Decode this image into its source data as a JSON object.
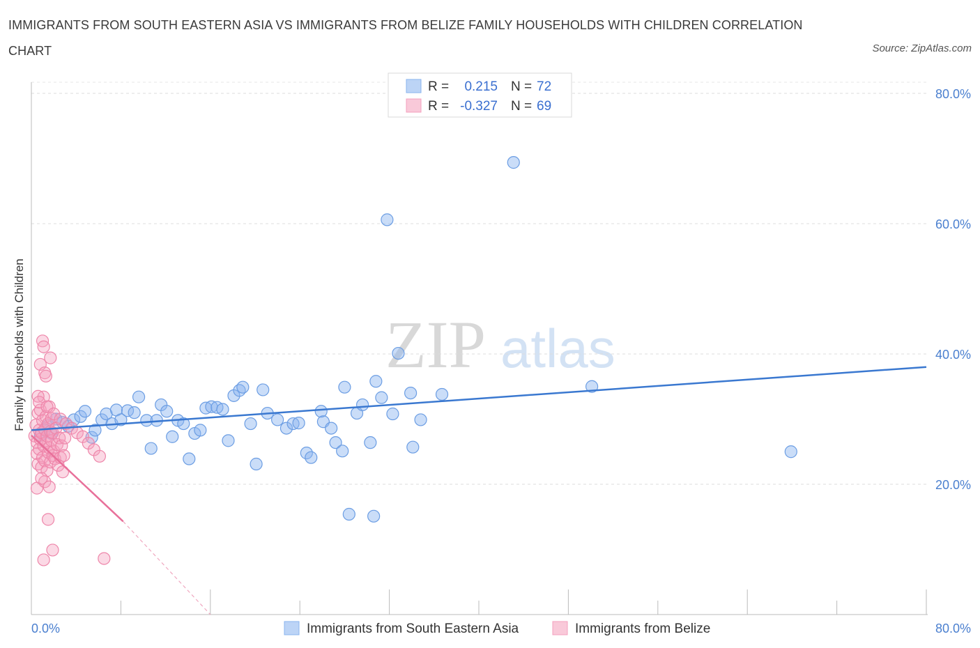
{
  "title": "IMMIGRANTS FROM SOUTH EASTERN ASIA VS IMMIGRANTS FROM BELIZE FAMILY HOUSEHOLDS WITH CHILDREN CORRELATION CHART",
  "source": "Source: ZipAtlas.com",
  "watermark": {
    "zip": "ZIP",
    "atlas": "atlas"
  },
  "legend": {
    "r_label": "R =",
    "n_label": "N =",
    "series": [
      {
        "r": "0.215",
        "n": "72"
      },
      {
        "r": "-0.327",
        "n": "69"
      }
    ]
  },
  "chart_data": {
    "type": "scatter",
    "xlabel": "",
    "ylabel": "Family Households with Children",
    "xlim": [
      0,
      80
    ],
    "ylim": [
      0,
      80
    ],
    "x_tick_labels": [
      "0.0%",
      "80.0%"
    ],
    "y_tick_labels": [
      "80.0%",
      "60.0%",
      "40.0%",
      "20.0%"
    ],
    "y_tick_values": [
      80,
      60,
      40,
      20
    ],
    "colors": {
      "blue": "#8ab4ef",
      "blue_line": "#3a78d0",
      "pink": "#f4a0be",
      "pink_line": "#e8709a"
    },
    "series": [
      {
        "name": "Immigrants from South Eastern Asia",
        "color": "blue",
        "trend": {
          "x0": 0,
          "y0": 28.3,
          "x1": 80,
          "y1": 38.0
        },
        "points": [
          [
            0.8,
            27.5
          ],
          [
            1.2,
            28.3
          ],
          [
            1.5,
            29.0
          ],
          [
            1.8,
            27.8
          ],
          [
            2.2,
            30.0
          ],
          [
            2.8,
            29.5
          ],
          [
            3.3,
            28.9
          ],
          [
            3.8,
            29.9
          ],
          [
            4.4,
            30.4
          ],
          [
            4.8,
            31.2
          ],
          [
            5.4,
            27.2
          ],
          [
            5.7,
            28.3
          ],
          [
            6.3,
            29.9
          ],
          [
            6.7,
            30.8
          ],
          [
            7.2,
            29.3
          ],
          [
            7.6,
            31.4
          ],
          [
            8.0,
            29.9
          ],
          [
            8.6,
            31.3
          ],
          [
            9.2,
            31.0
          ],
          [
            9.6,
            33.4
          ],
          [
            10.3,
            29.8
          ],
          [
            10.7,
            25.5
          ],
          [
            11.2,
            29.8
          ],
          [
            11.6,
            32.2
          ],
          [
            12.1,
            31.2
          ],
          [
            12.6,
            27.3
          ],
          [
            13.1,
            29.8
          ],
          [
            13.6,
            29.3
          ],
          [
            14.1,
            23.9
          ],
          [
            14.6,
            27.8
          ],
          [
            15.1,
            28.3
          ],
          [
            15.6,
            31.7
          ],
          [
            16.1,
            31.9
          ],
          [
            16.6,
            31.8
          ],
          [
            17.1,
            31.5
          ],
          [
            17.6,
            26.7
          ],
          [
            18.1,
            33.6
          ],
          [
            18.6,
            34.4
          ],
          [
            18.9,
            34.9
          ],
          [
            19.6,
            29.3
          ],
          [
            20.1,
            23.1
          ],
          [
            20.7,
            34.5
          ],
          [
            21.1,
            30.9
          ],
          [
            22.0,
            29.9
          ],
          [
            22.8,
            28.6
          ],
          [
            23.4,
            29.3
          ],
          [
            23.9,
            29.4
          ],
          [
            24.6,
            24.8
          ],
          [
            25.0,
            24.1
          ],
          [
            25.9,
            31.2
          ],
          [
            26.1,
            29.6
          ],
          [
            26.8,
            28.6
          ],
          [
            27.2,
            26.4
          ],
          [
            27.8,
            25.1
          ],
          [
            28.0,
            34.9
          ],
          [
            29.1,
            30.9
          ],
          [
            29.6,
            32.2
          ],
          [
            30.3,
            26.4
          ],
          [
            30.8,
            35.8
          ],
          [
            31.3,
            33.3
          ],
          [
            31.8,
            60.6
          ],
          [
            32.3,
            30.8
          ],
          [
            32.8,
            40.1
          ],
          [
            33.9,
            34.0
          ],
          [
            34.1,
            25.7
          ],
          [
            34.8,
            29.9
          ],
          [
            36.7,
            33.8
          ],
          [
            28.4,
            15.4
          ],
          [
            30.6,
            15.1
          ],
          [
            43.1,
            69.4
          ],
          [
            50.1,
            35.0
          ],
          [
            67.9,
            25.0
          ]
        ]
      },
      {
        "name": "Immigrants from Belize",
        "color": "pink",
        "trend": {
          "x0": 0,
          "y0": 27.5,
          "x1": 8.2,
          "y1": 14.3,
          "dash_x1": 16.0,
          "dash_y1": 0.0
        },
        "points": [
          [
            0.3,
            27.4
          ],
          [
            0.4,
            29.1
          ],
          [
            0.5,
            26.4
          ],
          [
            0.5,
            24.7
          ],
          [
            0.6,
            30.9
          ],
          [
            0.6,
            23.1
          ],
          [
            0.7,
            28.3
          ],
          [
            0.7,
            25.4
          ],
          [
            0.8,
            31.4
          ],
          [
            0.8,
            26.9
          ],
          [
            0.9,
            22.6
          ],
          [
            0.9,
            27.9
          ],
          [
            1.0,
            24.1
          ],
          [
            1.0,
            29.8
          ],
          [
            1.1,
            25.9
          ],
          [
            1.1,
            33.4
          ],
          [
            1.2,
            28.4
          ],
          [
            1.2,
            23.6
          ],
          [
            1.3,
            30.4
          ],
          [
            1.3,
            26.4
          ],
          [
            1.4,
            22.1
          ],
          [
            1.4,
            27.4
          ],
          [
            1.5,
            24.9
          ],
          [
            1.5,
            29.3
          ],
          [
            1.6,
            25.6
          ],
          [
            1.6,
            31.9
          ],
          [
            1.7,
            28.1
          ],
          [
            1.7,
            23.4
          ],
          [
            1.8,
            26.7
          ],
          [
            1.8,
            30.1
          ],
          [
            1.9,
            24.4
          ],
          [
            1.9,
            27.9
          ],
          [
            2.0,
            25.1
          ],
          [
            2.1,
            23.9
          ],
          [
            2.2,
            28.6
          ],
          [
            2.3,
            26.1
          ],
          [
            2.4,
            22.9
          ],
          [
            2.5,
            27.1
          ],
          [
            2.6,
            24.1
          ],
          [
            2.7,
            25.9
          ],
          [
            2.8,
            21.9
          ],
          [
            2.9,
            24.4
          ],
          [
            3.0,
            27.1
          ],
          [
            0.5,
            19.4
          ],
          [
            1.2,
            20.4
          ],
          [
            1.5,
            14.6
          ],
          [
            1.1,
            8.4
          ],
          [
            1.9,
            9.9
          ],
          [
            6.5,
            8.6
          ],
          [
            1.0,
            42.0
          ],
          [
            1.1,
            41.1
          ],
          [
            1.7,
            39.4
          ],
          [
            0.8,
            38.4
          ],
          [
            1.2,
            37.1
          ],
          [
            1.3,
            36.6
          ],
          [
            0.6,
            33.5
          ],
          [
            0.7,
            32.6
          ],
          [
            1.4,
            31.9
          ],
          [
            2.0,
            30.8
          ],
          [
            2.6,
            30.0
          ],
          [
            3.1,
            29.3
          ],
          [
            3.6,
            28.6
          ],
          [
            4.1,
            27.9
          ],
          [
            4.6,
            27.3
          ],
          [
            5.1,
            26.3
          ],
          [
            5.6,
            25.3
          ],
          [
            6.1,
            24.3
          ],
          [
            0.9,
            20.9
          ],
          [
            1.6,
            19.6
          ]
        ]
      }
    ]
  }
}
